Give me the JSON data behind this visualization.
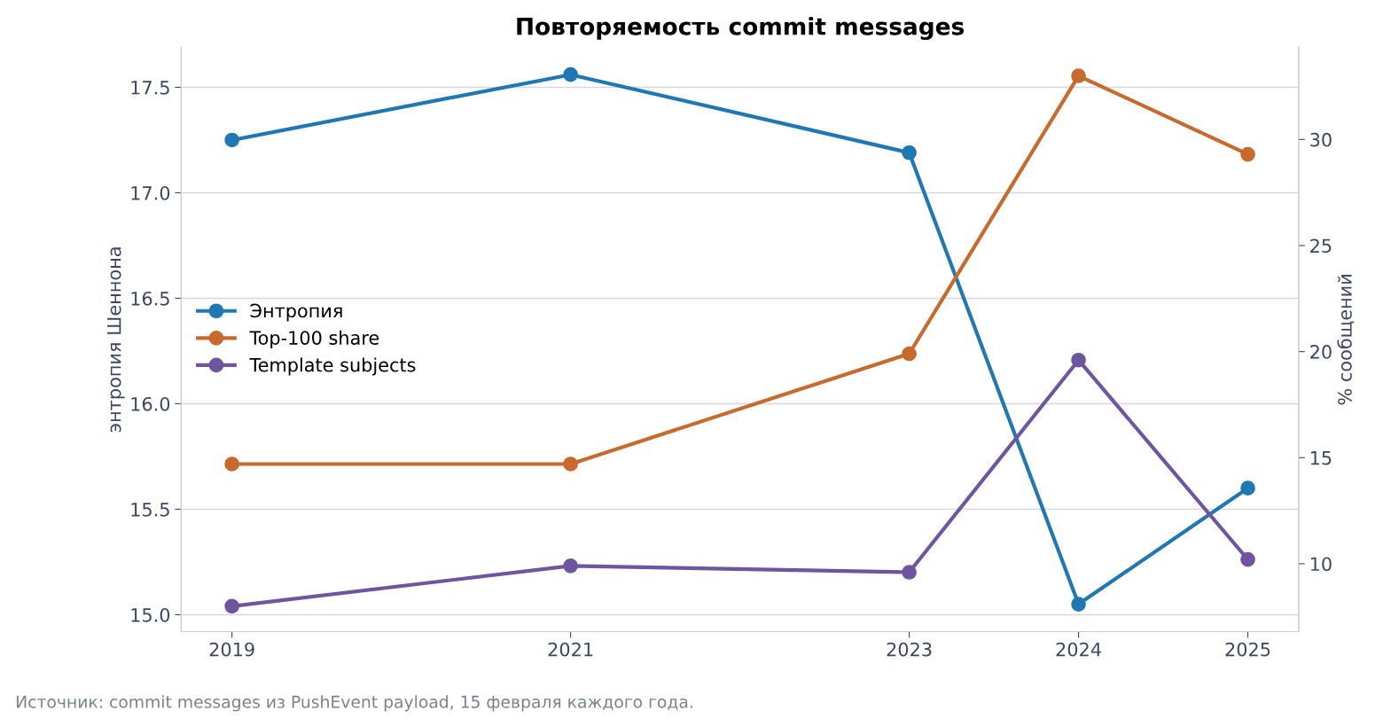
{
  "chart_data": {
    "type": "line",
    "title": "Повторяемость commit messages",
    "x": [
      2019,
      2021,
      2023,
      2024,
      2025
    ],
    "series": [
      {
        "name": "Энтропия",
        "color": "#1f77b4",
        "values": [
          17.25,
          17.56,
          17.19,
          15.05,
          15.6
        ]
      },
      {
        "name": "Top-100 share",
        "color": "#c8692d",
        "axis": "y2",
        "values": [
          14.7,
          14.7,
          19.9,
          33.0,
          29.3
        ]
      },
      {
        "name": "Template subjects",
        "color": "#6e55a0",
        "axis": "y2",
        "values": [
          8.0,
          9.9,
          9.6,
          19.6,
          10.2
        ]
      }
    ],
    "ylabel": "энтропия Шеннона",
    "y2label": "% сообщений",
    "xlim": [
      2018.7,
      2025.3
    ],
    "xticks": [
      2019,
      2021,
      2023,
      2024,
      2025
    ],
    "ylim": [
      14.92,
      17.69
    ],
    "yticks": [
      {
        "value": 15,
        "label": "15.0"
      },
      15.5,
      {
        "value": 16,
        "label": "16.0"
      },
      16.5,
      {
        "value": 17,
        "label": "17.0"
      },
      17.5
    ],
    "y2lim": [
      6.8,
      34.35
    ],
    "y2ticks": [
      10,
      15,
      20,
      25,
      30
    ],
    "grid": "y",
    "legend": "center left",
    "marker": "circle",
    "line_style": "solid",
    "annotations": [
      "Источник: commit messages из PushEvent payload, 15 февраля каждого года."
    ]
  }
}
